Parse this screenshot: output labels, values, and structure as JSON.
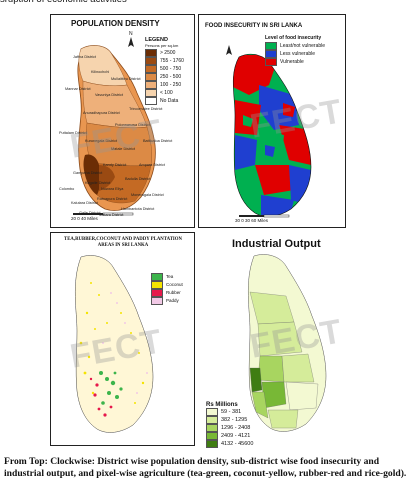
{
  "top_text": "sruption of economic activities",
  "maps": {
    "population": {
      "title": "POPULATION DENSITY",
      "legend_title": "LEGEND",
      "legend_sub": "Persons per sq.km",
      "legend": [
        {
          "label": "> 2500",
          "color": "#6b2d05"
        },
        {
          "label": "755 - 1760",
          "color": "#9a4a12"
        },
        {
          "label": "500 - 750",
          "color": "#c46a24"
        },
        {
          "label": "250 - 500",
          "color": "#dc8a45"
        },
        {
          "label": "100 - 250",
          "color": "#eeb07a"
        },
        {
          "label": "< 100",
          "color": "#f6d4ae"
        },
        {
          "label": "No Data",
          "color": "#ffffff"
        }
      ],
      "districts": [
        "Jaffna District",
        "Kilinochchi",
        "Mullaittivu District",
        "Mannar District",
        "Vavuniya District",
        "Trincomalee District",
        "Anuradhapura District",
        "Polonnaruwa District",
        "Puttalam District",
        "Kurunegala District",
        "Matale District",
        "Batticaloa District",
        "Ampara District",
        "Kandy District",
        "Gampaha District",
        "Kegalle District",
        "Colombo",
        "Nuwara Eliya",
        "Badulla District",
        "Moneragala District",
        "Ratnapura District",
        "Kalutara District",
        "Galle District",
        "Matara District",
        "Hambantota District"
      ],
      "scale": "20    0    40 Miles"
    },
    "food": {
      "title": "FOOD INSECURITY IN SRI LANKA",
      "legend_title": "Level of food insecurity",
      "legend": [
        {
          "label": "Least/not vulnerable",
          "color": "#00b050"
        },
        {
          "label": "Less vulnerable",
          "color": "#1f3fd0"
        },
        {
          "label": "Vulnerable",
          "color": "#e00000"
        }
      ],
      "scale": "30    0    30    60 Miles"
    },
    "plantation": {
      "title": "TEA,RUBBER,COCONUT AND PADDY PLANTATION AREAS IN SRI LANKA",
      "legend": [
        {
          "label": "Tea",
          "color": "#3cb44b"
        },
        {
          "label": "Coconut",
          "color": "#f5e400"
        },
        {
          "label": "Rubber",
          "color": "#e6194b"
        },
        {
          "label": "Paddy",
          "color": "#f2c9e6"
        }
      ]
    },
    "industrial": {
      "title": "Industrial Output",
      "legend_title": "Rs Millions",
      "legend": [
        {
          "label": "59 - 381",
          "color": "#f3f9d2"
        },
        {
          "label": "382 - 1295",
          "color": "#d5ec9a"
        },
        {
          "label": "1296 - 2408",
          "color": "#a8d560"
        },
        {
          "label": "2409 - 4121",
          "color": "#78b836"
        },
        {
          "label": "4132 - 45600",
          "color": "#3f7d12"
        }
      ]
    }
  },
  "watermark": "FECT",
  "caption": "From Top: Clockwise: District wise population density, sub-district wise food insecurity and industrial output, and pixel-wise agriculture (tea-green, coconut-yellow, rubber-red and rice-gold)."
}
